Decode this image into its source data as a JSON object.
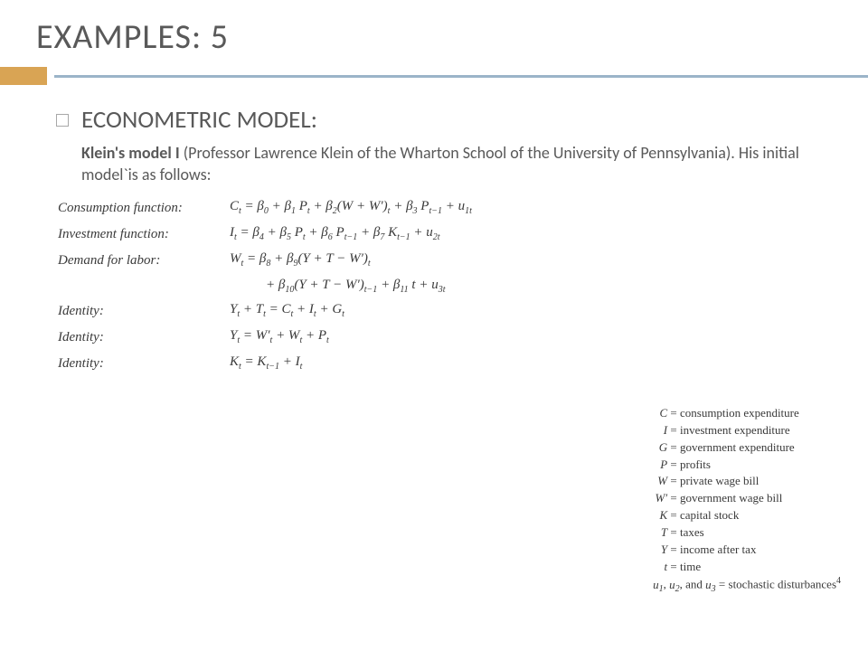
{
  "title": "EXAMPLES: 5",
  "subtitle": "ECONOMETRIC MODEL:",
  "description_bold": "Klein's model I",
  "description_rest": " (Professor Lawrence Klein of the Wharton School of the University of Pennsylvania). His initial model`is as follows:",
  "colors": {
    "accent": "#d9a454",
    "rule": "#9bb4c9",
    "text": "#595959",
    "math": "#3a3a3a",
    "bg": "#ffffff"
  },
  "equations": [
    {
      "label": "Consumption function:",
      "body_html": "C<span class='sub'>t</span> = β<span class='sub'>0</span> + β<span class='sub'>1</span> P<span class='sub'>t</span> + β<span class='sub'>2</span>(W + W′)<span class='sub'>t</span> + β<span class='sub'>3</span> P<span class='sub'>t−1</span> + u<span class='sub'>1t</span>"
    },
    {
      "label": "Investment function:",
      "body_html": "I<span class='sub'>t</span> = β<span class='sub'>4</span> + β<span class='sub'>5</span> P<span class='sub'>t</span> + β<span class='sub'>6</span> P<span class='sub'>t−1</span> + β<span class='sub'>7</span> K<span class='sub'>t−1</span> + u<span class='sub'>2t</span>"
    },
    {
      "label": "Demand for labor:",
      "body_html": "W<span class='sub'>t</span> = β<span class='sub'>8</span> + β<span class='sub'>9</span>(Y + T − W′)<span class='sub'>t</span>",
      "cont_html": "+ β<span class='sub'>10</span>(Y + T − W′)<span class='sub'>t−1</span> + β<span class='sub'>11</span> t + u<span class='sub'>3t</span>"
    },
    {
      "label": "Identity:",
      "body_html": "Y<span class='sub'>t</span> + T<span class='sub'>t</span> = C<span class='sub'>t</span> + I<span class='sub'>t</span> + G<span class='sub'>t</span>"
    },
    {
      "label": "Identity:",
      "body_html": "Y<span class='sub'>t</span> = W′<span class='sub'>t</span> + W<span class='sub'>t</span> + P<span class='sub'>t</span>"
    },
    {
      "label": "Identity:",
      "body_html": "K<span class='sub'>t</span> = K<span class='sub'>t−1</span> + I<span class='sub'>t</span>"
    }
  ],
  "legend": [
    {
      "sym": "C",
      "def": "consumption expenditure"
    },
    {
      "sym": "I",
      "def": "investment expenditure"
    },
    {
      "sym": "G",
      "def": "government expenditure"
    },
    {
      "sym": "P",
      "def": "profits"
    },
    {
      "sym": "W",
      "def": "private wage bill"
    },
    {
      "sym": "W′",
      "def": "government wage bill"
    },
    {
      "sym": "K",
      "def": "capital stock"
    },
    {
      "sym": "T",
      "def": "taxes"
    },
    {
      "sym": "Y",
      "def": "income after tax"
    },
    {
      "sym": "t",
      "def": "time"
    }
  ],
  "legend_last_html": "<span class='symw'>u</span><span class='sub'>1</span>, <span class='symw'>u</span><span class='sub'>2</span>, <span class='eq'>and</span> <span class='symw'>u</span><span class='sub'>3</span> = stochastic disturbances<span class='sup'>4</span>",
  "fontsize": {
    "title": 38,
    "subtitle": 27,
    "desc": 18,
    "math": 15,
    "legend": 13
  }
}
